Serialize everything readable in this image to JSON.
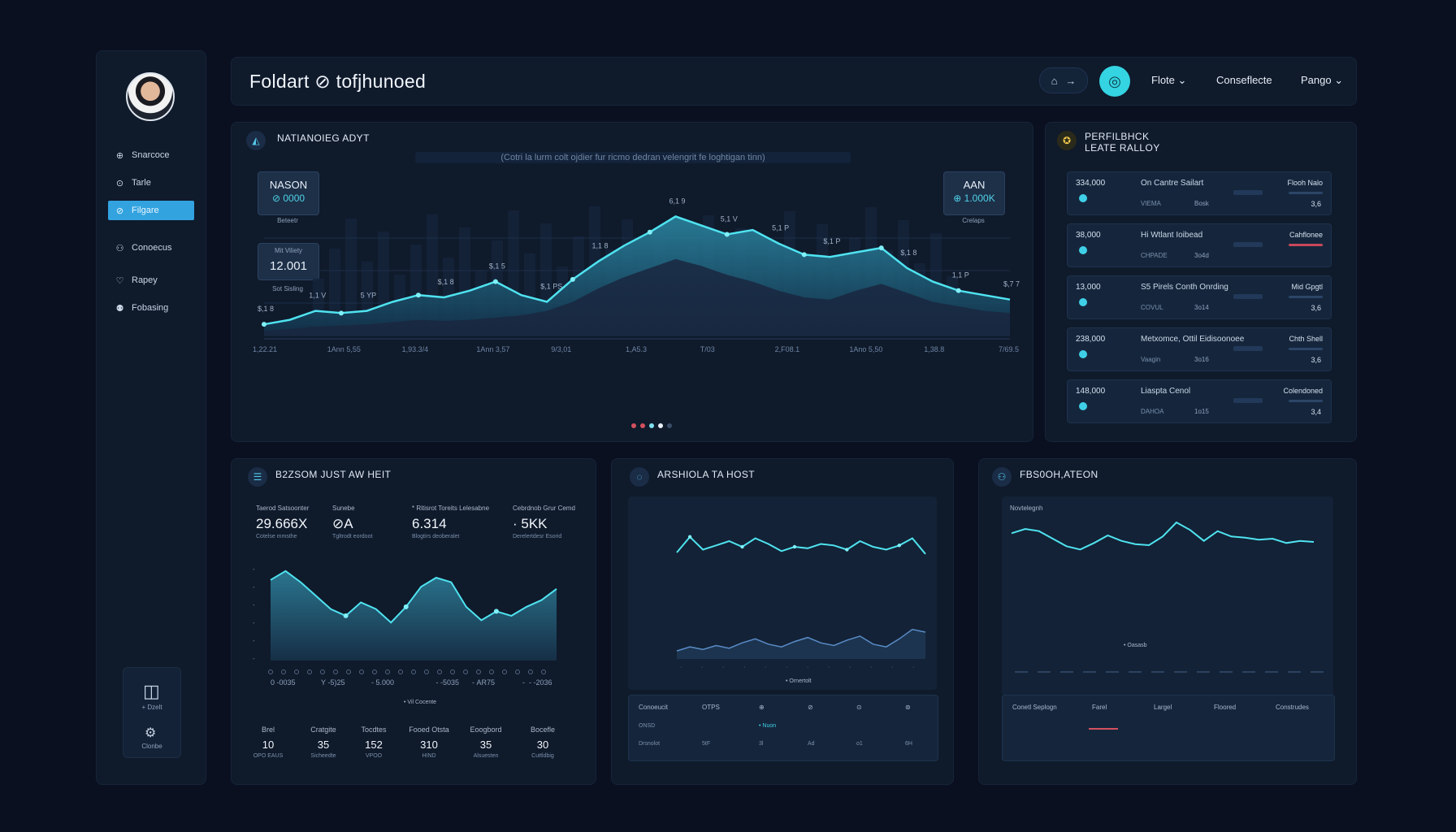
{
  "sidebar": {
    "items": [
      {
        "label": "Snarcoce",
        "icon": "⊕",
        "icon_name": "overview-icon"
      },
      {
        "label": "Tarle",
        "icon": "⊙",
        "icon_name": "clock-icon"
      },
      {
        "label": "Filgare",
        "icon": "⊘",
        "icon_name": "chart-icon"
      },
      {
        "label": "Conoecus",
        "icon": "⚇",
        "icon_name": "users-icon"
      },
      {
        "label": "Rapey",
        "icon": "♡",
        "icon_name": "heart-icon"
      },
      {
        "label": "Fobasing",
        "icon": "⚉",
        "icon_name": "team-icon"
      }
    ],
    "active_index": 2,
    "bottom": {
      "top_label": "+ Dzelt",
      "bottom_label": "Clonbe"
    }
  },
  "header": {
    "title": "Foldart ⊘ tofjhunoed",
    "links": [
      "Flote ⌄",
      "Conseflecte",
      "Pango ⌄"
    ],
    "pill_icons": [
      "⌂",
      "→"
    ]
  },
  "main_chart": {
    "title": "NATIANOIEG ADYT",
    "subtitle": "(Cotri la lurm colt ojdier fur ricmo dedran velengrit fe loghtigan tinn)",
    "kpi_left": {
      "label": "NASON",
      "value": "⊘ 0000",
      "caption": "Beteetr"
    },
    "kpi_left2": {
      "label": "Mit Viliety",
      "value": "12.001",
      "caption": "Sot Sisling"
    },
    "kpi_right": {
      "label": "AAN",
      "value": "⊕ 1.000K",
      "caption": "Crelaps"
    },
    "point_labels": [
      "$,1 8",
      "1,1 V",
      "5 YP",
      "$,1 8",
      "$,1 5",
      "$,1 PS",
      "1,1 8",
      "6,1 9",
      "5,1 V",
      "5,1 P",
      "$,1 P",
      "$,1 8",
      "1,1 P",
      "$,7 7"
    ],
    "x_ticks": [
      "1,22.21",
      "1Ann 5,55",
      "1,93.3/4",
      "1Ann 3,57",
      "9/3,01",
      "1,A5.3",
      "T/03",
      "2,F08.1",
      "1Ano 5,50",
      "1,38.8",
      "7/69.5"
    ],
    "pager": [
      "#d4505e",
      "#d4505e",
      "#7fe2f0",
      "#e8eef6",
      "#3a4e6a"
    ]
  },
  "chart_data": [
    {
      "type": "area",
      "title": "NATIANOIEG ADYT",
      "x": [
        0,
        1,
        2,
        3,
        4,
        5,
        6,
        7,
        8,
        9,
        10,
        11,
        12,
        13,
        14,
        15,
        16,
        17,
        18,
        19,
        20,
        21,
        22,
        23,
        24,
        25,
        26,
        27,
        28,
        29
      ],
      "values": [
        10,
        14,
        22,
        20,
        22,
        30,
        36,
        34,
        40,
        48,
        36,
        30,
        50,
        66,
        80,
        92,
        106,
        98,
        90,
        94,
        82,
        72,
        70,
        74,
        78,
        60,
        48,
        40,
        36,
        32
      ],
      "shadow_values": [
        4,
        6,
        8,
        9,
        10,
        12,
        14,
        13,
        14,
        16,
        18,
        22,
        30,
        42,
        52,
        60,
        68,
        62,
        54,
        48,
        40,
        34,
        32,
        40,
        46,
        38,
        30,
        26,
        22,
        20
      ],
      "ylim": [
        0,
        120
      ]
    },
    {
      "type": "area",
      "title": "B2ZSOM JUST AW HEIT",
      "x": [
        0,
        1,
        2,
        3,
        4,
        5,
        6,
        7,
        8,
        9,
        10,
        11,
        12,
        13,
        14,
        15,
        16,
        17,
        18,
        19
      ],
      "values": [
        72,
        80,
        70,
        58,
        46,
        40,
        52,
        46,
        34,
        48,
        66,
        74,
        70,
        48,
        36,
        44,
        40,
        48,
        54,
        64
      ],
      "ylim": [
        0,
        90
      ],
      "x_ticks": [
        "0 -0035",
        "Y -5)25",
        "- 5.000",
        "       - -5035",
        "- AR75",
        "-  - -2036"
      ]
    },
    {
      "type": "line",
      "title": "ARSHIOLA TA HOST",
      "series": [
        {
          "name": "top",
          "values": [
            40,
            62,
            44,
            50,
            56,
            48,
            60,
            52,
            42,
            48,
            46,
            52,
            50,
            44,
            56,
            48,
            44,
            50,
            60,
            38
          ]
        },
        {
          "name": "bottom",
          "values": [
            12,
            18,
            14,
            20,
            16,
            24,
            30,
            22,
            18,
            26,
            32,
            24,
            20,
            28,
            34,
            22,
            18,
            30,
            44,
            40
          ]
        }
      ],
      "ylim": [
        0,
        80
      ]
    },
    {
      "type": "line",
      "title": "FBS0OH,ATEON",
      "series": [
        {
          "name": "main",
          "values": [
            58,
            66,
            62,
            48,
            34,
            28,
            40,
            54,
            44,
            38,
            36,
            52,
            78,
            64,
            44,
            62,
            52,
            50,
            46,
            48,
            40,
            44,
            42
          ]
        }
      ],
      "ylim": [
        0,
        90
      ]
    }
  ],
  "perf_card": {
    "title_line1": "PERFILBHCK",
    "title_line2": "LEATE RALLOY",
    "rows": [
      {
        "value": "334,000",
        "name": "On Cantre Sailart",
        "sub": "VIEMA",
        "sub2": "Bosk",
        "tag": "Flooh Nalo",
        "num": "3,6",
        "red": false
      },
      {
        "value": "38,000",
        "name": "Hi Wtlant Ioibead",
        "sub": "CHPADE",
        "sub2": "3o4d",
        "tag": "Cahflonee",
        "num": "",
        "red": true
      },
      {
        "value": "13,000",
        "name": "S5 Pirels Conth Onrding",
        "sub": "COVUL",
        "sub2": "3o14",
        "tag": "Mid Gpgtl",
        "num": "3,6",
        "red": false
      },
      {
        "value": "238,000",
        "name": "Metxomce, Ottil Eidisoonoee",
        "sub": "Vaagin",
        "sub2": "3o16",
        "tag": "Chth Shell",
        "num": "3,6",
        "red": false
      },
      {
        "value": "148,000",
        "name": "Liaspta Cenol",
        "sub": "DAHOA",
        "sub2": "1o15",
        "tag": "Colendoned",
        "num": "3,4",
        "red": false
      }
    ]
  },
  "stats_card": {
    "title": "B2ZSOM JUST AW HEIT",
    "stats": [
      {
        "label": "Taerod Satsoonter",
        "value": "29.666X",
        "sub": "Cotelse mmsthe"
      },
      {
        "label": "Sunebe",
        "value": "⊘A",
        "sub": "Tgltrodt eordoot"
      },
      {
        "label": "* Ritisrot Toreits Lelesabne",
        "value": "6.314",
        "sub": "Blogtirs deoberalet"
      },
      {
        "label": "Cebrdnob Grur Cemd",
        "value": "· 5KK",
        "sub": "Derelertdesr Esorid"
      }
    ],
    "legend": "• Vil Cocente",
    "footer": [
      {
        "label": "Brel",
        "value": "10",
        "sub": "OPO EAUS"
      },
      {
        "label": "Cratgite",
        "value": "35",
        "sub": "Sicheedte"
      },
      {
        "label": "Tocdtes",
        "value": "152",
        "sub": "VPOO"
      },
      {
        "label": "Fooed Otsta",
        "value": "310",
        "sub": "HIND"
      },
      {
        "label": "Eoogbord",
        "value": "35",
        "sub": "Alsuesten"
      },
      {
        "label": "Bocefle",
        "value": "30",
        "sub": "Cuttldbig"
      }
    ]
  },
  "host_card": {
    "title": "ARSHIOLA TA HOST",
    "table_headers": [
      "Conoeucit",
      "OTPS",
      "⊕",
      "⊘",
      "⊙",
      "⊚"
    ],
    "table_rows": [
      [
        "ONSD",
        "",
        "• Nuon",
        "",
        "",
        ""
      ],
      [
        "Drsnolot",
        "5tF",
        "3l",
        "Ad",
        "o1",
        "6H"
      ]
    ],
    "legend": "• Ornertolt"
  },
  "mon_card": {
    "title": "FBS0OH,ATEON",
    "y_label": "Novtelegnh",
    "table_headers": [
      "Conetl Seplogn",
      "Farel",
      "Largel",
      "Floored",
      "Construdes"
    ],
    "legend": "• Oasasb"
  }
}
